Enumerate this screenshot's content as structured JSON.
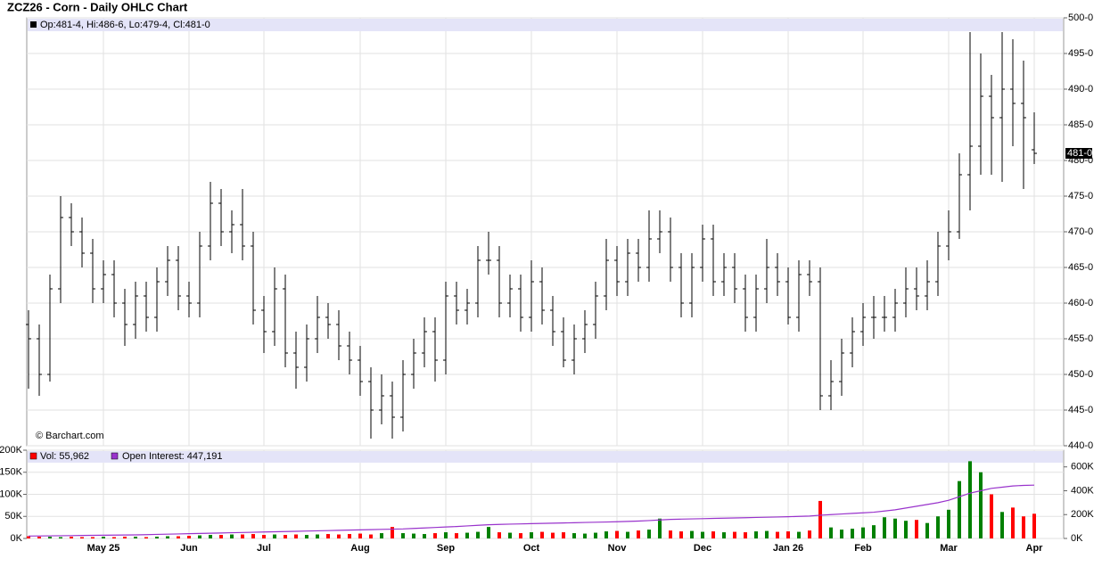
{
  "chart_data": [
    {
      "type": "ohlc",
      "title": "ZCZ26 - Corn - Daily OHLC Chart",
      "info": "Op:481-4, Hi:486-6, Lo:479-4, Cl:481-0",
      "watermark": "© Barchart.com",
      "color": "#000000",
      "grid": true,
      "open": [
        457,
        455,
        450,
        462,
        472,
        470,
        467,
        462,
        464,
        460,
        457,
        461,
        458,
        463,
        466,
        461,
        460,
        468,
        474,
        470,
        471,
        468,
        459,
        456,
        462,
        453,
        451,
        455,
        458,
        457,
        454,
        452,
        449,
        445,
        447,
        444,
        450,
        453,
        456,
        452,
        461,
        459,
        460,
        466,
        466,
        460,
        462,
        458,
        463,
        459,
        456,
        452,
        455,
        457,
        461,
        466,
        463,
        467,
        465,
        469,
        470,
        465,
        460,
        465,
        469,
        463,
        465,
        462,
        458,
        462,
        465,
        463,
        458,
        464,
        463,
        447,
        449,
        453,
        456,
        458,
        458,
        458,
        460,
        462,
        461,
        463,
        468,
        470,
        478,
        482,
        489,
        486,
        490,
        488,
        481.5
      ],
      "high": [
        459,
        457,
        464,
        475,
        474,
        472,
        469,
        466,
        466,
        462,
        463,
        463,
        465,
        468,
        468,
        463,
        470,
        477,
        476,
        473,
        476,
        470,
        461,
        465,
        464,
        456,
        457,
        461,
        460,
        459,
        456,
        454,
        451,
        450,
        449,
        452,
        455,
        458,
        458,
        463,
        463,
        462,
        468,
        470,
        468,
        464,
        464,
        466,
        465,
        461,
        458,
        457,
        459,
        463,
        469,
        468,
        469,
        469,
        473,
        473,
        472,
        467,
        467,
        471,
        471,
        467,
        467,
        464,
        464,
        469,
        467,
        465,
        466,
        466,
        465,
        452,
        455,
        458,
        460,
        461,
        461,
        462,
        465,
        465,
        466,
        470,
        473,
        481,
        498,
        495,
        492,
        498,
        497,
        494,
        486.75
      ],
      "low": [
        448,
        447,
        449,
        460,
        468,
        465,
        460,
        460,
        458,
        454,
        455,
        456,
        456,
        461,
        459,
        458,
        458,
        466,
        468,
        467,
        466,
        457,
        453,
        454,
        451,
        448,
        449,
        453,
        455,
        452,
        450,
        447,
        441,
        443,
        441,
        442,
        448,
        451,
        449,
        450,
        457,
        457,
        458,
        464,
        458,
        458,
        456,
        456,
        457,
        454,
        451,
        450,
        453,
        455,
        459,
        461,
        461,
        463,
        463,
        467,
        463,
        458,
        458,
        463,
        461,
        461,
        460,
        456,
        456,
        460,
        461,
        457,
        456,
        461,
        445,
        445,
        447,
        451,
        454,
        455,
        456,
        456,
        458,
        459,
        459,
        461,
        466,
        469,
        473,
        478,
        478,
        477,
        482,
        476,
        479.5
      ],
      "close": [
        455,
        450,
        462,
        472,
        470,
        467,
        462,
        464,
        460,
        457,
        461,
        458,
        463,
        466,
        461,
        460,
        468,
        474,
        470,
        471,
        468,
        459,
        456,
        462,
        453,
        451,
        455,
        458,
        457,
        454,
        452,
        449,
        445,
        447,
        444,
        450,
        453,
        456,
        452,
        461,
        459,
        460,
        466,
        466,
        460,
        462,
        458,
        463,
        459,
        456,
        452,
        455,
        457,
        461,
        466,
        463,
        467,
        465,
        469,
        470,
        465,
        460,
        465,
        469,
        463,
        465,
        462,
        458,
        462,
        465,
        463,
        458,
        464,
        463,
        447,
        449,
        453,
        456,
        458,
        458,
        458,
        460,
        462,
        461,
        463,
        468,
        470,
        478,
        482,
        489,
        486,
        490,
        488,
        486,
        481
      ],
      "ylim": [
        440,
        500
      ],
      "yticks": [
        {
          "value": 440,
          "label": "440-0"
        },
        {
          "value": 445,
          "label": "445-0"
        },
        {
          "value": 450,
          "label": "450-0"
        },
        {
          "value": 455,
          "label": "455-0"
        },
        {
          "value": 460,
          "label": "460-0"
        },
        {
          "value": 465,
          "label": "465-0"
        },
        {
          "value": 470,
          "label": "470-0"
        },
        {
          "value": 475,
          "label": "475-0"
        },
        {
          "value": 480,
          "label": "480-0"
        },
        {
          "value": 485,
          "label": "485-0"
        },
        {
          "value": 490,
          "label": "490-0"
        },
        {
          "value": 495,
          "label": "495-0"
        },
        {
          "value": 500,
          "label": "500-0"
        }
      ],
      "last_price": {
        "value": 481,
        "label": "481-0"
      }
    },
    {
      "type": "bar",
      "grid": true,
      "categories": [
        null,
        null,
        null,
        null,
        null,
        null,
        null,
        "May 25",
        null,
        null,
        null,
        null,
        null,
        null,
        null,
        "Jun",
        null,
        null,
        null,
        null,
        null,
        null,
        "Jul",
        null,
        null,
        null,
        null,
        null,
        null,
        null,
        null,
        "Aug",
        null,
        null,
        null,
        null,
        null,
        null,
        null,
        "Sep",
        null,
        null,
        null,
        null,
        null,
        null,
        null,
        "Oct",
        null,
        null,
        null,
        null,
        null,
        null,
        null,
        "Nov",
        null,
        null,
        null,
        null,
        null,
        null,
        null,
        "Dec",
        null,
        null,
        null,
        null,
        null,
        null,
        null,
        "Jan 26",
        null,
        null,
        null,
        null,
        null,
        null,
        "Feb",
        null,
        null,
        null,
        null,
        null,
        null,
        null,
        "Mar",
        null,
        null,
        null,
        null,
        null,
        null,
        null,
        "Apr"
      ],
      "series": [
        {
          "name": "Vol: 55,962",
          "color": "#ff0000",
          "up_color": "#008000",
          "down_color": "#ff0000",
          "values": [
            5000,
            4000,
            4000,
            3000,
            4000,
            3000,
            3000,
            4000,
            3000,
            4000,
            4000,
            3000,
            4000,
            5000,
            5000,
            6000,
            7000,
            8000,
            8000,
            9000,
            9000,
            10000,
            8000,
            9000,
            8000,
            9000,
            8000,
            9000,
            10000,
            9000,
            10000,
            11000,
            9000,
            12000,
            26000,
            12000,
            11000,
            10000,
            12000,
            14000,
            12000,
            13000,
            15000,
            26000,
            14000,
            13000,
            12000,
            14000,
            15000,
            13000,
            14000,
            12000,
            11000,
            13000,
            16000,
            17000,
            15000,
            18000,
            20000,
            45000,
            18000,
            16000,
            17000,
            15000,
            16000,
            14000,
            15000,
            14000,
            16000,
            17000,
            15000,
            16000,
            15000,
            18000,
            85000,
            25000,
            20000,
            22000,
            25000,
            30000,
            48000,
            45000,
            40000,
            42000,
            35000,
            50000,
            65000,
            130000,
            175000,
            150000,
            100000,
            60000,
            70000,
            50000,
            55962
          ]
        },
        {
          "name": "Open Interest: 447,191",
          "color": "#9933cc",
          "axis": "y2",
          "values": [
            20000,
            21000,
            22000,
            23000,
            24000,
            25000,
            26000,
            27000,
            28000,
            29000,
            30000,
            32000,
            34000,
            36000,
            38000,
            40000,
            42000,
            44000,
            46000,
            48000,
            50000,
            52000,
            54000,
            56000,
            58000,
            60000,
            62000,
            64000,
            66000,
            68000,
            70000,
            72000,
            74000,
            76000,
            78000,
            80000,
            84000,
            88000,
            92000,
            96000,
            100000,
            105000,
            110000,
            115000,
            118000,
            120000,
            122000,
            124000,
            126000,
            128000,
            130000,
            132000,
            134000,
            136000,
            138000,
            140000,
            143000,
            146000,
            150000,
            155000,
            160000,
            162000,
            164000,
            166000,
            168000,
            170000,
            172000,
            174000,
            176000,
            178000,
            180000,
            182000,
            185000,
            188000,
            195000,
            200000,
            205000,
            210000,
            215000,
            220000,
            230000,
            240000,
            255000,
            270000,
            285000,
            300000,
            320000,
            350000,
            380000,
            400000,
            420000,
            430000,
            440000,
            445000,
            447191
          ]
        }
      ],
      "ylim": [
        0,
        200000
      ],
      "yticks": [
        {
          "value": 0,
          "label": "0K"
        },
        {
          "value": 50000,
          "label": "50K"
        },
        {
          "value": 100000,
          "label": "100K"
        },
        {
          "value": 150000,
          "label": "150K"
        },
        {
          "value": 200000,
          "label": "200K"
        }
      ],
      "y2lim": [
        0,
        740000
      ],
      "y2ticks": [
        {
          "value": 0,
          "label": "0K"
        },
        {
          "value": 200000,
          "label": "200K"
        },
        {
          "value": 400000,
          "label": "400K"
        },
        {
          "value": 600000,
          "label": "600K"
        }
      ]
    }
  ]
}
